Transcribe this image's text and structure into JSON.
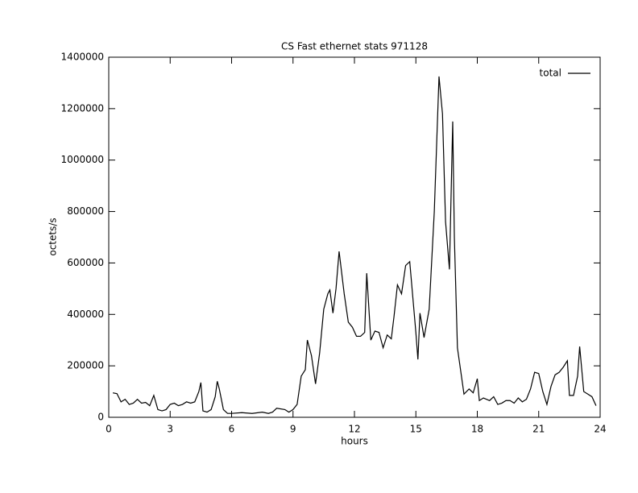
{
  "chart_data": {
    "type": "line",
    "title": "CS Fast ethernet stats 971128",
    "x_label": "hours",
    "y_label": "octets/s",
    "x": [
      0.2,
      0.4,
      0.6,
      0.8,
      1.0,
      1.2,
      1.4,
      1.6,
      1.8,
      2.0,
      2.2,
      2.4,
      2.6,
      2.8,
      3.0,
      3.2,
      3.4,
      3.6,
      3.8,
      4.0,
      4.2,
      4.4,
      4.5,
      4.6,
      4.8,
      5.0,
      5.2,
      5.3,
      5.4,
      5.6,
      5.8,
      6.0,
      6.5,
      7.0,
      7.5,
      7.8,
      8.0,
      8.2,
      8.6,
      8.8,
      9.0,
      9.2,
      9.4,
      9.6,
      9.7,
      9.9,
      10.1,
      10.3,
      10.5,
      10.7,
      10.8,
      10.95,
      11.1,
      11.25,
      11.5,
      11.7,
      11.9,
      12.1,
      12.3,
      12.5,
      12.6,
      12.8,
      13.0,
      13.2,
      13.4,
      13.6,
      13.8,
      13.93,
      14.1,
      14.3,
      14.5,
      14.7,
      15.0,
      15.1,
      15.2,
      15.4,
      15.65,
      15.9,
      16.13,
      16.3,
      16.45,
      16.64,
      16.8,
      16.88,
      17.03,
      17.35,
      17.6,
      17.8,
      18.0,
      18.1,
      18.3,
      18.6,
      18.8,
      19.0,
      19.2,
      19.4,
      19.6,
      19.8,
      20.0,
      20.2,
      20.4,
      20.6,
      20.8,
      21.0,
      21.2,
      21.4,
      21.6,
      21.8,
      22.0,
      22.2,
      22.4,
      22.5,
      22.7,
      22.9,
      23.0,
      23.2,
      23.4,
      23.6,
      23.8
    ],
    "series": [
      {
        "name": "total",
        "color": "#000000",
        "values": [
          95000,
          92000,
          60000,
          70000,
          50000,
          55000,
          70000,
          55000,
          58000,
          45000,
          85000,
          30000,
          25000,
          30000,
          50000,
          55000,
          45000,
          50000,
          60000,
          55000,
          60000,
          100000,
          135000,
          25000,
          20000,
          30000,
          80000,
          140000,
          110000,
          30000,
          15000,
          15000,
          18000,
          15000,
          20000,
          15000,
          20000,
          35000,
          30000,
          20000,
          30000,
          50000,
          160000,
          185000,
          300000,
          240000,
          130000,
          250000,
          420000,
          480000,
          495000,
          405000,
          500000,
          645000,
          480000,
          370000,
          350000,
          315000,
          315000,
          330000,
          560000,
          300000,
          335000,
          330000,
          270000,
          320000,
          305000,
          390000,
          515000,
          480000,
          590000,
          605000,
          330000,
          225000,
          405000,
          310000,
          420000,
          800000,
          1325000,
          1180000,
          760000,
          575000,
          1150000,
          700000,
          270000,
          90000,
          110000,
          95000,
          150000,
          65000,
          75000,
          65000,
          80000,
          50000,
          55000,
          65000,
          65000,
          55000,
          75000,
          60000,
          70000,
          110000,
          175000,
          170000,
          100000,
          50000,
          120000,
          165000,
          175000,
          195000,
          220000,
          85000,
          85000,
          160000,
          275000,
          100000,
          90000,
          80000,
          45000
        ]
      }
    ],
    "xlim": [
      0,
      24
    ],
    "xticks": [
      0,
      3,
      6,
      9,
      12,
      15,
      18,
      21,
      24
    ],
    "ylim": [
      0,
      1400000
    ],
    "yticks": [
      0,
      200000,
      400000,
      600000,
      800000,
      1000000,
      1200000,
      1400000
    ],
    "grid": false,
    "legend": "top-right"
  }
}
